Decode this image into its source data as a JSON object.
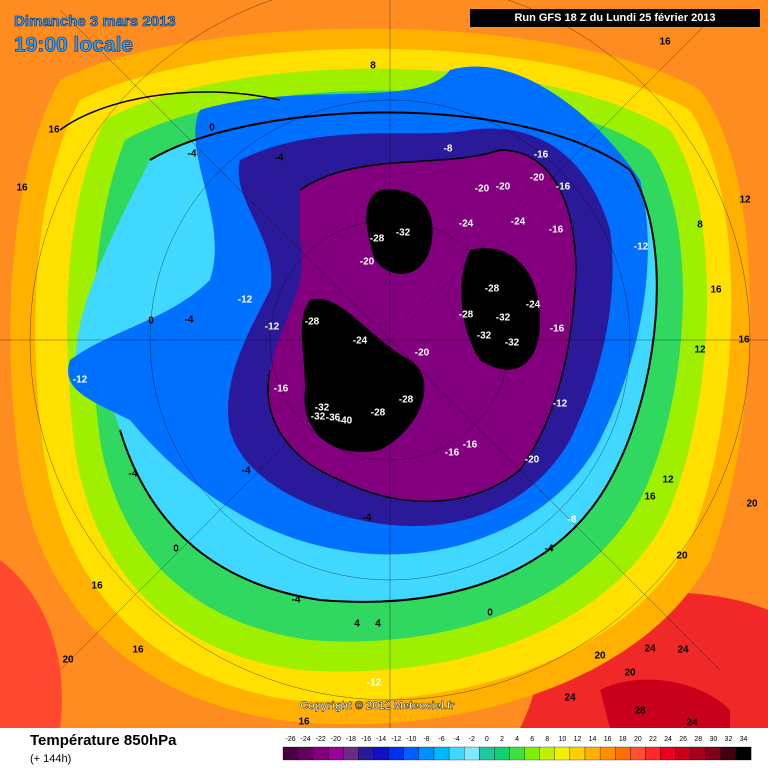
{
  "header": {
    "title": "Dimanche 3 mars 2013",
    "subtitle": "19:00 locale",
    "run": "Run GFS 18 Z du Lundi 25 février 2013"
  },
  "copyright": "Copyright © 2012 Meteociel.fr",
  "footer": {
    "title": "Température 850hPa",
    "subtitle": "(+ 144h)"
  },
  "legend": {
    "values": [
      -26,
      -24,
      -22,
      -20,
      -18,
      -16,
      -14,
      -12,
      -10,
      -8,
      -6,
      -4,
      -2,
      0,
      2,
      4,
      6,
      8,
      10,
      12,
      14,
      16,
      18,
      20,
      22,
      24,
      26,
      28,
      30,
      32,
      34
    ],
    "colors": [
      "#4a003e",
      "#66005e",
      "#82007e",
      "#9a009a",
      "#6a2a86",
      "#2a1a9a",
      "#1010c8",
      "#0030f0",
      "#0060ff",
      "#0090ff",
      "#00b8ff",
      "#40d8ff",
      "#80e8ff",
      "#20c8a0",
      "#10d070",
      "#40e040",
      "#80f000",
      "#c0f000",
      "#f0f000",
      "#ffd000",
      "#ffb000",
      "#ff9000",
      "#ff7000",
      "#ff5030",
      "#ff2828",
      "#e8001c",
      "#c8001c",
      "#a8001c",
      "#80001a",
      "#400010",
      "#000000"
    ]
  },
  "contour_labels": [
    8,
    16,
    0,
    -4,
    -4,
    -8,
    -16,
    -20,
    -20,
    -20,
    -16,
    16,
    16,
    12,
    8,
    -32,
    -28,
    -24,
    -24,
    -16,
    -12,
    -20,
    -28,
    -24,
    -28,
    -32,
    -32,
    -32,
    -16,
    -28,
    -24,
    -20,
    -12,
    -12,
    -4,
    0,
    -12,
    -16,
    -32,
    -32,
    -36,
    -40,
    -28,
    -28,
    -16,
    -16,
    -20,
    -12,
    -4,
    -4,
    0,
    -4,
    -8,
    -4,
    16,
    12,
    16,
    12,
    16,
    20,
    20,
    16,
    16,
    20,
    20,
    24,
    24,
    24,
    28,
    24,
    20,
    -12,
    16,
    0,
    -4,
    4,
    4
  ]
}
